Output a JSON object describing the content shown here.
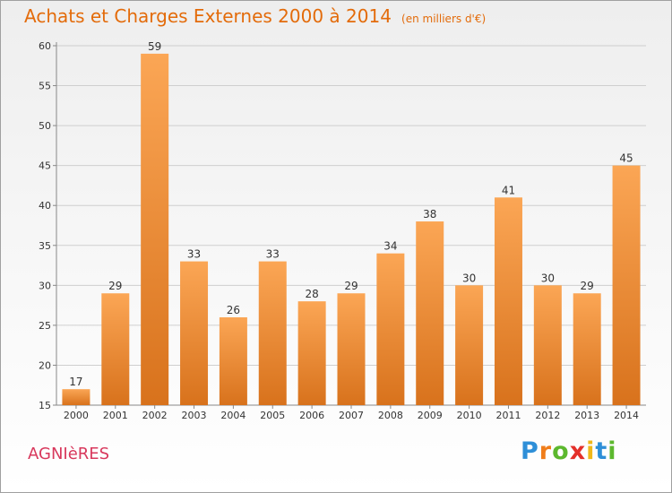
{
  "title": "Achats et Charges Externes 2000 à 2014",
  "unit": "(en milliers d'€)",
  "commune": "AGNIèRES",
  "logo": {
    "letters": [
      "P",
      "r",
      "o",
      "x",
      "i",
      "t",
      "i"
    ],
    "colors": [
      "#2e8fd8",
      "#f07d1a",
      "#5cb82e",
      "#e4302a",
      "#f0b81a",
      "#2e8fd8",
      "#5cb82e"
    ]
  },
  "colors": {
    "title": "#e36b0a",
    "commune": "#d8385c",
    "bar_top": "#fba655",
    "bar_bottom": "#d8721c"
  },
  "chart_data": {
    "type": "bar",
    "categories": [
      "2000",
      "2001",
      "2002",
      "2003",
      "2004",
      "2005",
      "2006",
      "2007",
      "2008",
      "2009",
      "2010",
      "2011",
      "2012",
      "2013",
      "2014"
    ],
    "values": [
      17,
      29,
      59,
      33,
      26,
      33,
      28,
      29,
      34,
      38,
      30,
      41,
      30,
      29,
      45
    ],
    "title": "Achats et Charges Externes 2000 à 2014",
    "unit": "(en milliers d'€)",
    "xlabel": "",
    "ylabel": "",
    "ylim": [
      15,
      60
    ],
    "yticks": [
      15,
      20,
      25,
      30,
      35,
      40,
      45,
      50,
      55,
      60
    ],
    "grid": true,
    "legend": "none"
  }
}
